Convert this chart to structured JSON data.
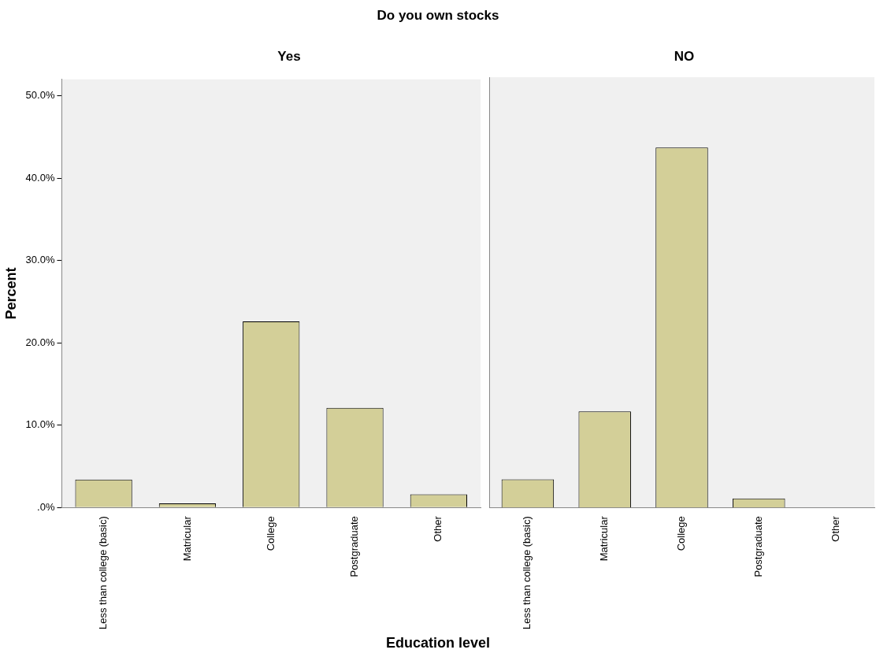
{
  "chart_data": [
    {
      "type": "bar",
      "title": "Do you own stocks",
      "subtitle": "Yes",
      "xlabel": "Education level",
      "ylabel": "Percent",
      "categories": [
        "Less than college (basic)",
        "Matricular",
        "College",
        "Postgraduate",
        "Other"
      ],
      "values": [
        3.4,
        0.5,
        22.6,
        12.1,
        1.6
      ],
      "color": "#d3cf98",
      "ylim": [
        0,
        52
      ],
      "yticks": [
        {
          "value": 0,
          "label": ".0%"
        },
        {
          "value": 10,
          "label": "10.0%"
        },
        {
          "value": 20,
          "label": "20.0%"
        },
        {
          "value": 30,
          "label": "30.0%"
        },
        {
          "value": 40,
          "label": "40.0%"
        },
        {
          "value": 50,
          "label": "50.0%"
        }
      ],
      "grid": false,
      "legend": false
    },
    {
      "type": "bar",
      "subtitle": "NO",
      "categories": [
        "Less than college (basic)",
        "Matricular",
        "College",
        "Postgraduate",
        "Other"
      ],
      "values": [
        3.4,
        11.6,
        43.5,
        1.1,
        0
      ],
      "color": "#d3cf98",
      "ylim": [
        0,
        52
      ],
      "grid": false,
      "legend": false,
      "tick_labels": "x"
    }
  ]
}
